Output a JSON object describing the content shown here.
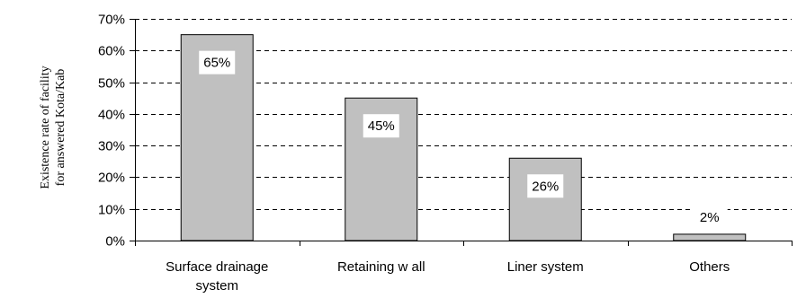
{
  "chart_data": {
    "type": "bar",
    "categories": [
      [
        "Surface drainage",
        "system"
      ],
      [
        "Retaining w all"
      ],
      [
        "Liner system"
      ],
      [
        "Others"
      ]
    ],
    "values": [
      65,
      45,
      26,
      2
    ],
    "data_labels": [
      "65%",
      "45%",
      "26%",
      "2%"
    ],
    "ylabel": [
      "Existence rate of facility",
      "for answered Kota/Kab"
    ],
    "ylim": [
      0,
      70
    ],
    "yticks": [
      0,
      10,
      20,
      30,
      40,
      50,
      60,
      70
    ],
    "ytick_labels": [
      "0%",
      "10%",
      "20%",
      "30%",
      "40%",
      "50%",
      "60%",
      "70%"
    ],
    "grid": "horizontal dashed",
    "bar_color": "#c0c0c0",
    "bar_edge_color": "#000000"
  }
}
